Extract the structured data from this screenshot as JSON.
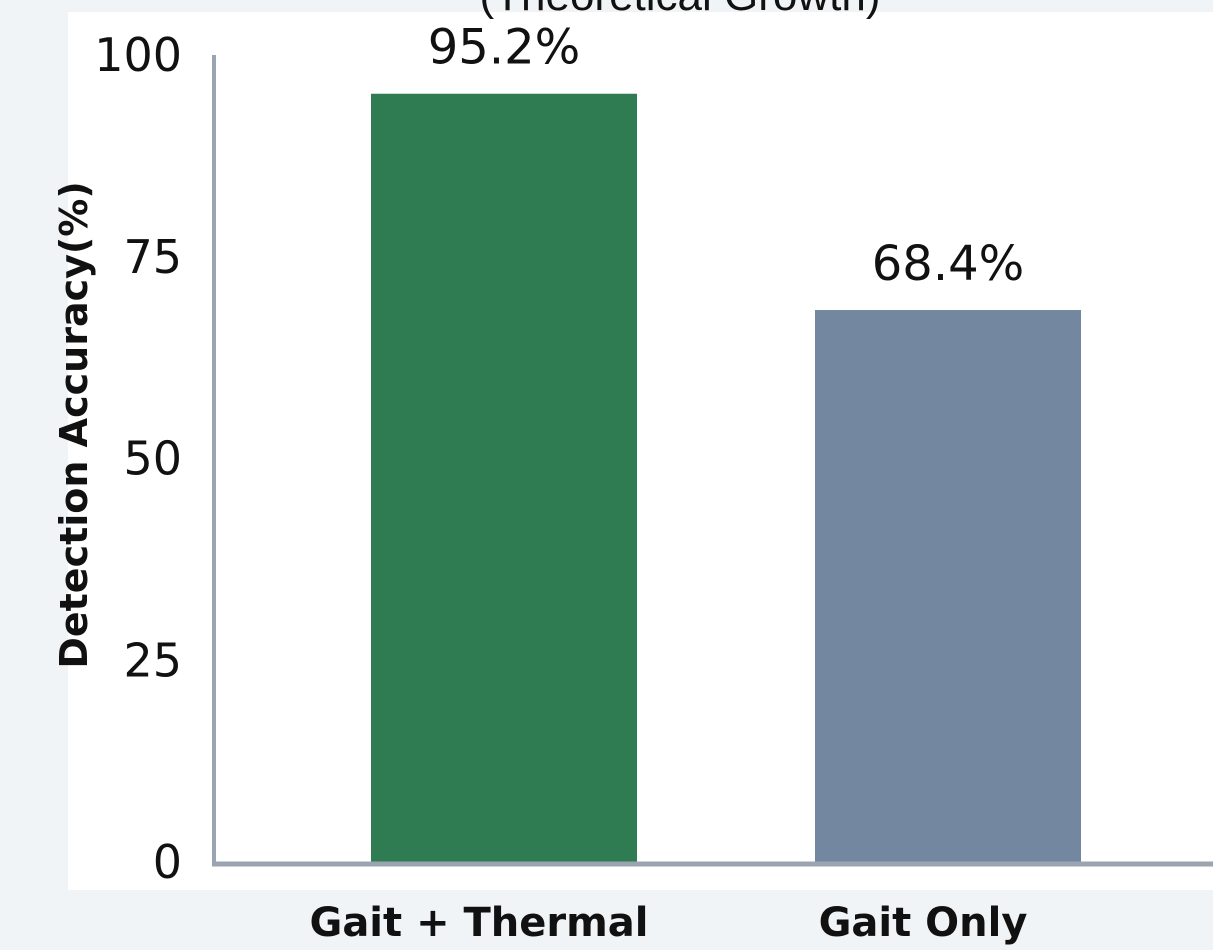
{
  "chart_data": {
    "type": "bar",
    "title": "(Theoretical Growth)",
    "categories": [
      "Gait + Thermal",
      "Gait Only"
    ],
    "values": [
      95.2,
      68.4
    ],
    "value_labels": [
      "95.2%",
      "68.4%"
    ],
    "bar_colors": [
      "#2f7b52",
      "#7388a0"
    ],
    "xlabel": "",
    "ylabel": "Detection Accuracy(%)",
    "ylim": [
      0,
      100
    ],
    "yticks": [
      0,
      25,
      50,
      75,
      100
    ],
    "grid": false,
    "legend": "none"
  },
  "colors": {
    "axis": "#9aa5b1",
    "background": "#ffffff",
    "frame": "#f1f4f6"
  }
}
